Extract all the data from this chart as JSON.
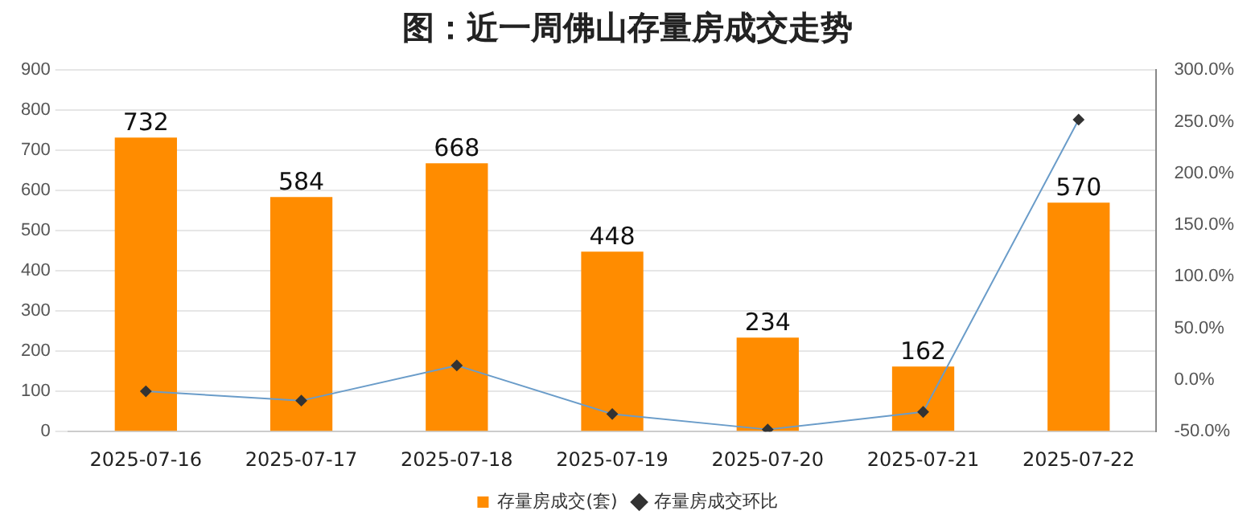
{
  "chart_data": {
    "type": "bar",
    "title": "图：近一周佛山存量房成交走势",
    "categories": [
      "2025-07-16",
      "2025-07-17",
      "2025-07-18",
      "2025-07-19",
      "2025-07-20",
      "2025-07-21",
      "2025-07-22"
    ],
    "series": [
      {
        "name": "存量房成交(套)",
        "color": "#ff8c00",
        "values": [
          732,
          584,
          668,
          448,
          234,
          162,
          570
        ],
        "value_labels": [
          "732",
          "584",
          "668",
          "448",
          "234",
          "162",
          "570"
        ]
      },
      {
        "name": "存量房成交环比",
        "type": "line",
        "axis": "y2",
        "color": "#6a9cc9",
        "marker": "diamond",
        "values": [
          -11,
          -20,
          14,
          -33,
          -48,
          -31,
          252
        ]
      }
    ],
    "ylim": [
      0,
      900
    ],
    "yticks": [
      0,
      100,
      200,
      300,
      400,
      500,
      600,
      700,
      800,
      900
    ],
    "y2lim": [
      -50,
      300
    ],
    "y2ticks": [
      {
        "value": -50,
        "label": "-50.0%"
      },
      {
        "value": 0,
        "label": "0.0%"
      },
      {
        "value": 50,
        "label": "50.0%"
      },
      {
        "value": 100,
        "label": "100.0%"
      },
      {
        "value": 150,
        "label": "150.0%"
      },
      {
        "value": 200,
        "label": "200.0%"
      },
      {
        "value": 250,
        "label": "250.0%"
      },
      {
        "value": 300,
        "label": "300.0%"
      }
    ],
    "grid": "y",
    "legend": "bottom"
  }
}
